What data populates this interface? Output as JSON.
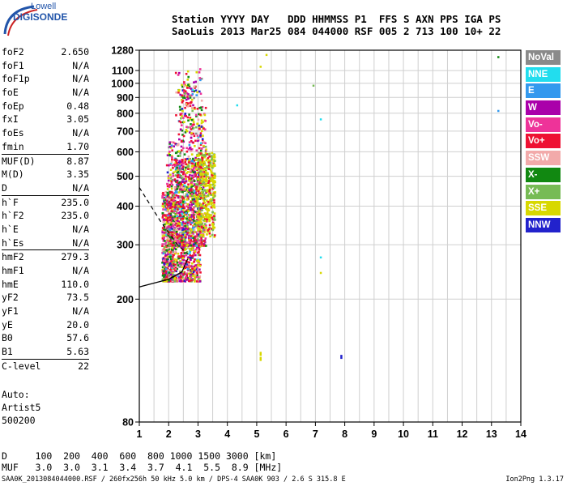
{
  "logo": {
    "line1": "Lowell",
    "line2": "DIGISONDE"
  },
  "header": {
    "line1": "Station YYYY DAY   DDD HHMMSS P1  FFS S AXN PPS IGA PS",
    "line2": "SaoLuis 2013 Mar25 084 044000 RSF 005 2 713 100 10+ 22"
  },
  "params": [
    {
      "name": "foF2",
      "value": "2.650"
    },
    {
      "name": "foF1",
      "value": "N/A"
    },
    {
      "name": "foF1p",
      "value": "N/A"
    },
    {
      "name": "foE",
      "value": "N/A"
    },
    {
      "name": "foEp",
      "value": "0.48"
    },
    {
      "name": "fxI",
      "value": "3.05"
    },
    {
      "name": "foEs",
      "value": "N/A"
    },
    {
      "name": "fmin",
      "value": "1.70"
    },
    {
      "sep": true
    },
    {
      "name": "MUF(D)",
      "value": "8.87"
    },
    {
      "name": "M(D)",
      "value": "3.35"
    },
    {
      "name": "D",
      "value": "N/A"
    },
    {
      "sep": true
    },
    {
      "name": "h`F",
      "value": "235.0"
    },
    {
      "name": "h`F2",
      "value": "235.0"
    },
    {
      "name": "h`E",
      "value": "N/A"
    },
    {
      "name": "h`Es",
      "value": "N/A"
    },
    {
      "sep": true
    },
    {
      "name": "hmF2",
      "value": "279.3"
    },
    {
      "name": "hmF1",
      "value": "N/A"
    },
    {
      "name": "hmE",
      "value": "110.0"
    },
    {
      "name": "yF2",
      "value": "73.5"
    },
    {
      "name": "yF1",
      "value": "N/A"
    },
    {
      "name": "yE",
      "value": "20.0"
    },
    {
      "name": "B0",
      "value": "57.6"
    },
    {
      "name": "B1",
      "value": "5.63"
    },
    {
      "sep": true
    },
    {
      "name": "C-level",
      "value": "22"
    }
  ],
  "auto": {
    "line1": "Auto:",
    "line2": "Artist5",
    "line3": "500200"
  },
  "legend": [
    {
      "label": "NoVal",
      "color": "#8a8a8a"
    },
    {
      "label": "NNE",
      "color": "#22ddee"
    },
    {
      "label": "E",
      "color": "#3399ee"
    },
    {
      "label": "W",
      "color": "#aa00aa"
    },
    {
      "label": "Vo-",
      "color": "#ee3399"
    },
    {
      "label": "Vo+",
      "color": "#ee1133"
    },
    {
      "label": "SSW",
      "color": "#f2aaaa"
    },
    {
      "label": "X-",
      "color": "#118811"
    },
    {
      "label": "X+",
      "color": "#77bb55"
    },
    {
      "label": "SSE",
      "color": "#d8d800"
    },
    {
      "label": "NNW",
      "color": "#2222cc"
    }
  ],
  "bottom": {
    "d_line": "D     100  200  400  600  800 1000 1500 3000 [km]",
    "muf_line": "MUF   3.0  3.0  3.1  3.4  3.7  4.1  5.5  8.9 [MHz]"
  },
  "footer": {
    "left": "SAA0K_2013084044000.RSF / 260fx256h 50 kHz 5.0 km / DPS-4 SAA0K 903 / 2.6 S 315.8 E",
    "right": "Ion2Png 1.3.17"
  },
  "chart_data": {
    "type": "scatter",
    "title": "",
    "xlabel": "",
    "ylabel": "",
    "xlim": [
      1,
      14
    ],
    "ylim": [
      80,
      1280
    ],
    "x_ticks": [
      "1",
      "2",
      "3",
      "4",
      "5",
      "6",
      "7",
      "8",
      "9",
      "10",
      "11",
      "12",
      "13",
      "14"
    ],
    "y_ticks": [
      "80",
      "200",
      "300",
      "400",
      "500",
      "600",
      "700",
      "800",
      "900",
      "1000",
      "1100",
      "1280"
    ],
    "y_tick_values": [
      80,
      200,
      300,
      400,
      500,
      600,
      700,
      800,
      900,
      1000,
      1100,
      1280
    ],
    "y_scale": "log",
    "grid": true,
    "cluster": {
      "x_range": [
        1.7,
        3.7
      ],
      "y_range": [
        230,
        1150
      ]
    },
    "isolated_points": [
      {
        "x": 5.3,
        "y": 1245,
        "color": "#d8d800"
      },
      {
        "x": 5.1,
        "y": 1140,
        "color": "#d8d800"
      },
      {
        "x": 13.2,
        "y": 1225,
        "color": "#118811"
      },
      {
        "x": 13.2,
        "y": 820,
        "color": "#3399ee"
      },
      {
        "x": 6.9,
        "y": 990,
        "color": "#77bb55"
      },
      {
        "x": 4.3,
        "y": 855,
        "color": "#22ddee"
      },
      {
        "x": 7.15,
        "y": 770,
        "color": "#22ddee"
      },
      {
        "x": 7.15,
        "y": 275,
        "color": "#22ddee"
      },
      {
        "x": 7.15,
        "y": 245,
        "color": "#d8d800"
      },
      {
        "x": 7.85,
        "y": 132,
        "color": "#2222cc"
      },
      {
        "x": 5.1,
        "y": 135,
        "color": "#d8d800"
      },
      {
        "x": 5.1,
        "y": 130,
        "color": "#d8d800"
      }
    ]
  }
}
